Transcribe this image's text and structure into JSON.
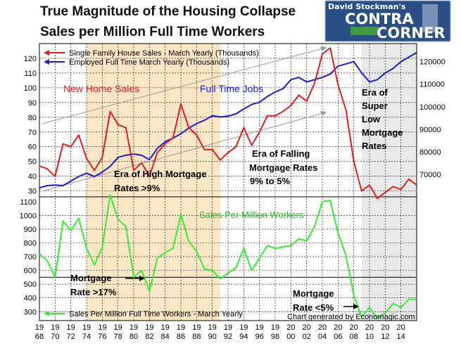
{
  "title": {
    "line1": "True Magnitude of the Housing Collapse",
    "line2": "Sales per Million Full Time Workers"
  },
  "logo": {
    "small": "David Stockman's",
    "big1": "CONTRA",
    "big2": "CORNER",
    "bg": "#2a4f86"
  },
  "credit": "Chart generated by Economagic.com",
  "colors": {
    "sales": "#e31e1e",
    "jobs": "#1b1bd8",
    "permillion": "#33ee33",
    "era_high": "#fbe6c6",
    "era_low": "#e8e8e8",
    "grid": "#000000"
  },
  "annotations": {
    "new_home_sales": "New Home Sales",
    "full_time_jobs": "Full Time Jobs",
    "era_super_low": [
      "Era of",
      "Super",
      "Low",
      "Mortgage",
      "Rates"
    ],
    "era_falling": [
      "Era of Falling",
      "Mortgage Rates",
      "9% to 5%"
    ],
    "era_high": [
      "Era of High Mortgage",
      "Rates >9%"
    ],
    "sales_per_million": "Sales Per Million Workers",
    "rate_high": [
      "Mortgage",
      "Rate >17%"
    ],
    "rate_low": [
      "Mortgage",
      "Rate <5%"
    ]
  },
  "chart_data": [
    {
      "type": "line",
      "x": [
        1968,
        1969,
        1970,
        1971,
        1972,
        1973,
        1974,
        1975,
        1976,
        1977,
        1978,
        1979,
        1980,
        1981,
        1982,
        1983,
        1984,
        1985,
        1986,
        1987,
        1988,
        1989,
        1990,
        1991,
        1992,
        1993,
        1994,
        1995,
        1996,
        1997,
        1998,
        1999,
        2000,
        2001,
        2002,
        2003,
        2004,
        2005,
        2006,
        2007,
        2008,
        2009,
        2010,
        2011,
        2012,
        2013,
        2014,
        2015,
        2016
      ],
      "series": [
        {
          "name": "Single Family House Sales - March Yearly (Thousands)",
          "axis": "left",
          "values": [
            47,
            45,
            40,
            62,
            60,
            68,
            52,
            44,
            53,
            84,
            75,
            73,
            44,
            49,
            40,
            56,
            62,
            66,
            89,
            73,
            68,
            58,
            58,
            51,
            56,
            60,
            73,
            61,
            70,
            81,
            81,
            84,
            88,
            95,
            91,
            103,
            123,
            127,
            102,
            85,
            50,
            30,
            34,
            25,
            29,
            33,
            31,
            38,
            34
          ]
        },
        {
          "name": "Employed Full Time March Yearly (Thousands)",
          "axis": "right",
          "values": [
            64000,
            65000,
            65200,
            65000,
            67000,
            69000,
            70500,
            69000,
            71000,
            73500,
            77500,
            78500,
            79000,
            78500,
            76500,
            81500,
            84500,
            86000,
            88000,
            90500,
            92500,
            94000,
            96000,
            95500,
            95800,
            96800,
            99000,
            101000,
            102000,
            104500,
            106500,
            108000,
            112000,
            113000,
            111000,
            112000,
            113000,
            114500,
            118000,
            119000,
            120000,
            115000,
            111000,
            112000,
            115000,
            117000,
            120000,
            122000,
            124000
          ]
        }
      ],
      "left_axis": {
        "ticks": [
          30,
          40,
          50,
          60,
          70,
          80,
          90,
          100,
          110,
          120
        ],
        "range": [
          26,
          130
        ]
      },
      "right_axis": {
        "ticks": [
          70000,
          80000,
          90000,
          100000,
          110000,
          120000
        ],
        "range": [
          60000,
          128000
        ]
      },
      "legend": [
        "Single Family House Sales - March Yearly (Thousands)",
        "Employed Full Time March Yearly (Thousands)"
      ],
      "legend_placement": "top-left"
    },
    {
      "type": "line",
      "x": [
        1968,
        1969,
        1970,
        1971,
        1972,
        1973,
        1974,
        1975,
        1976,
        1977,
        1978,
        1979,
        1980,
        1981,
        1982,
        1983,
        1984,
        1985,
        1986,
        1987,
        1988,
        1989,
        1990,
        1991,
        1992,
        1993,
        1994,
        1995,
        1996,
        1997,
        1998,
        1999,
        2000,
        2001,
        2002,
        2003,
        2004,
        2005,
        2006,
        2007,
        2008,
        2009,
        2010,
        2011,
        2012,
        2013,
        2014,
        2015,
        2016
      ],
      "series": [
        {
          "name": "Sales Per Million Full Time Workers - March Yearly",
          "axis": "left",
          "values": [
            720,
            670,
            550,
            960,
            890,
            980,
            760,
            640,
            770,
            1150,
            970,
            920,
            550,
            600,
            450,
            690,
            730,
            760,
            1010,
            810,
            740,
            610,
            600,
            540,
            580,
            620,
            760,
            600,
            690,
            780,
            760,
            770,
            780,
            830,
            815,
            920,
            1100,
            1110,
            870,
            710,
            420,
            260,
            330,
            250,
            290,
            360,
            330,
            390,
            390
          ]
        }
      ],
      "left_axis": {
        "ticks": [
          300,
          400,
          500,
          600,
          700,
          800,
          900,
          1000,
          1100
        ],
        "range": [
          235,
          1135
        ]
      },
      "legend": [
        "Sales Per Million Full Time Workers - March Yearly"
      ],
      "legend_placement": "bottom-left"
    }
  ],
  "x_labels": [
    [
      "19",
      "68"
    ],
    [
      "19",
      "70"
    ],
    [
      "19",
      "72"
    ],
    [
      "19",
      "74"
    ],
    [
      "19",
      "76"
    ],
    [
      "19",
      "78"
    ],
    [
      "19",
      "80"
    ],
    [
      "19",
      "82"
    ],
    [
      "19",
      "84"
    ],
    [
      "19",
      "86"
    ],
    [
      "19",
      "88"
    ],
    [
      "19",
      "90"
    ],
    [
      "19",
      "92"
    ],
    [
      "19",
      "94"
    ],
    [
      "19",
      "96"
    ],
    [
      "19",
      "98"
    ],
    [
      "20",
      "00"
    ],
    [
      "20",
      "02"
    ],
    [
      "20",
      "04"
    ],
    [
      "20",
      "06"
    ],
    [
      "20",
      "08"
    ],
    [
      "20",
      "10"
    ],
    [
      "20",
      "12"
    ],
    [
      "20",
      "14"
    ]
  ],
  "x_tick_years": [
    1968,
    1970,
    1972,
    1974,
    1976,
    1978,
    1980,
    1982,
    1984,
    1986,
    1988,
    1990,
    1992,
    1994,
    1996,
    1998,
    2000,
    2002,
    2004,
    2006,
    2008,
    2010,
    2012,
    2014
  ]
}
